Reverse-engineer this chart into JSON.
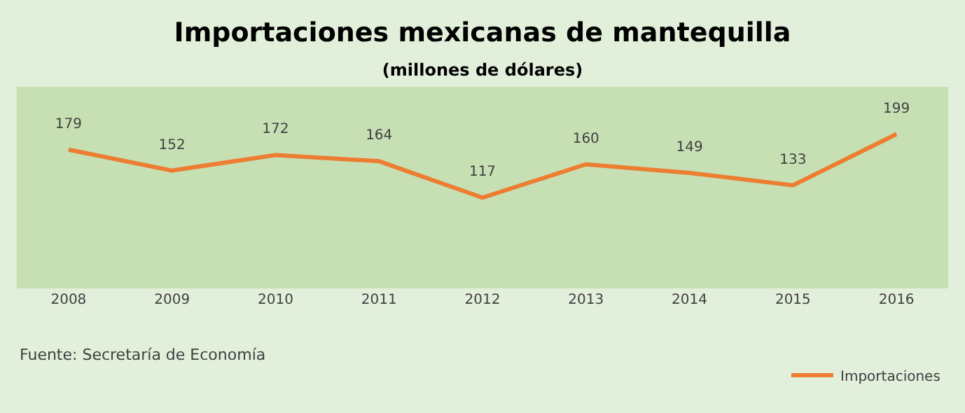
{
  "chart_data": {
    "type": "line",
    "title": "Importaciones mexicanas de mantequilla",
    "subtitle": "(millones de dólares)",
    "categories": [
      "2008",
      "2009",
      "2010",
      "2011",
      "2012",
      "2013",
      "2014",
      "2015",
      "2016"
    ],
    "series": [
      {
        "name": "Importaciones",
        "color": "#ed7d31",
        "values": [
          179,
          152,
          172,
          164,
          117,
          160,
          149,
          133,
          199
        ]
      }
    ],
    "ylim": [
      0,
      260
    ],
    "data_labels": true,
    "grid": false,
    "legend": "bottom right",
    "marker": "none",
    "line_style": "solid",
    "tick_labels": "x",
    "annotations": [
      "Fuente: Secretaría de Economía"
    ]
  }
}
